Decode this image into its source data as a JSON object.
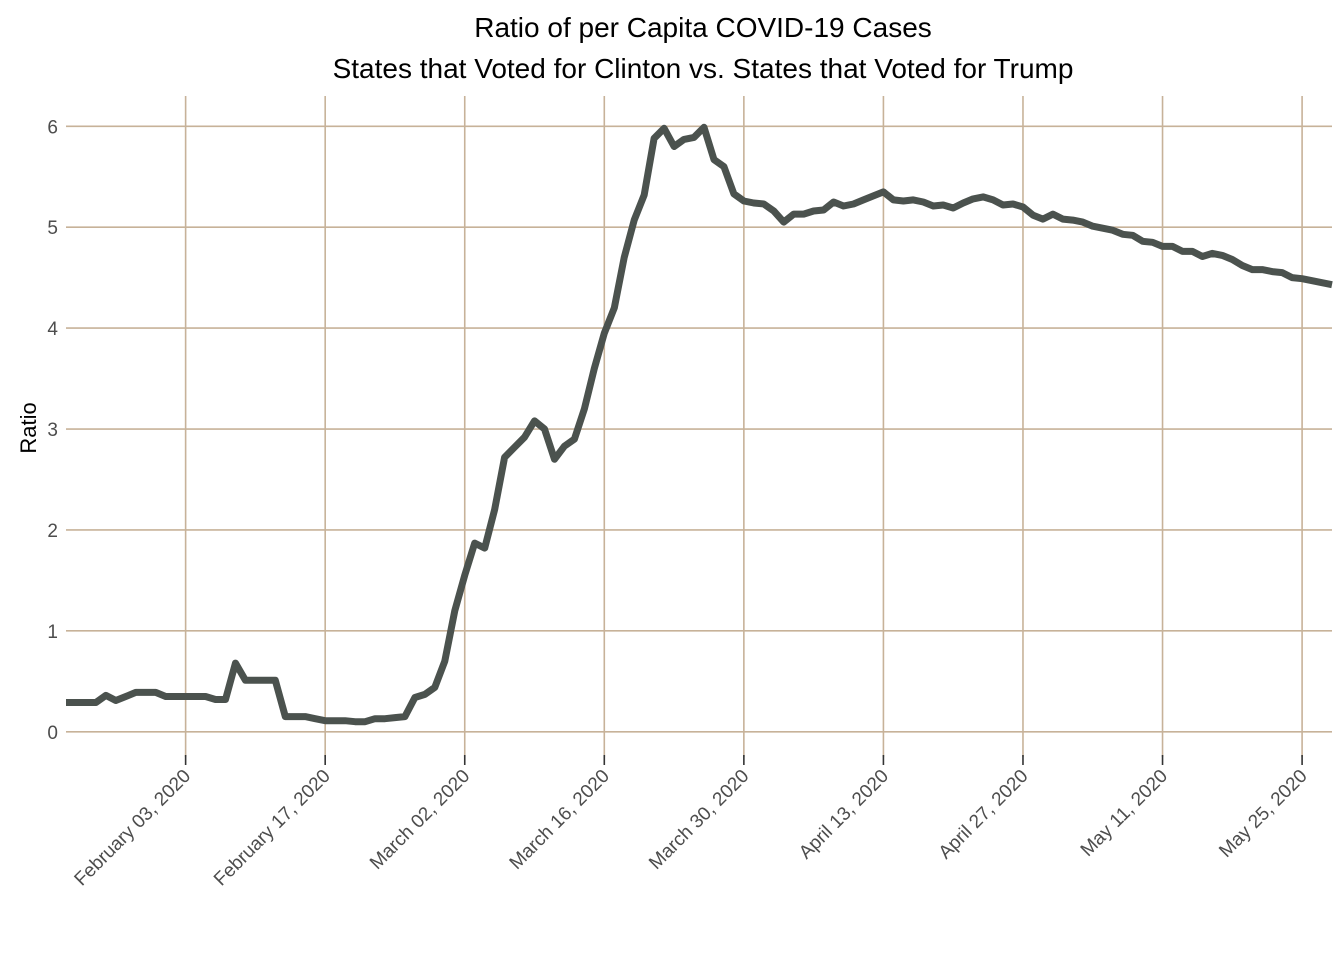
{
  "chart_data": {
    "type": "line",
    "title": [
      "Ratio of per Capita COVID-19 Cases",
      "States that Voted for Clinton vs. States that Voted for Trump"
    ],
    "xlabel": "",
    "ylabel": "Ratio",
    "xlim": [
      "2020-01-22",
      "2020-05-28"
    ],
    "ylim": [
      -0.25,
      6.3
    ],
    "y_ticks": [
      "0",
      "1",
      "2",
      "3",
      "4",
      "5",
      "6"
    ],
    "y_tick_values": [
      0,
      1,
      2,
      3,
      4,
      5,
      6
    ],
    "x_tick_dates": [
      "2020-02-03",
      "2020-02-17",
      "2020-03-02",
      "2020-03-16",
      "2020-03-30",
      "2020-04-13",
      "2020-04-27",
      "2020-05-11",
      "2020-05-25"
    ],
    "x_tick_labels": [
      "February 03, 2020",
      "February 17, 2020",
      "March 02, 2020",
      "March 16, 2020",
      "March 30, 2020",
      "April 13, 2020",
      "April 27, 2020",
      "May 11, 2020",
      "May 25, 2020"
    ],
    "grid": true,
    "line_color": "#4b524e",
    "grid_color": "#c7b299",
    "series": [
      {
        "x": [
          "2020-01-22",
          "2020-01-23",
          "2020-01-24",
          "2020-01-25",
          "2020-01-26",
          "2020-01-27",
          "2020-01-28",
          "2020-01-29",
          "2020-01-30",
          "2020-01-31",
          "2020-02-01",
          "2020-02-02",
          "2020-02-03",
          "2020-02-04",
          "2020-02-05",
          "2020-02-06",
          "2020-02-07",
          "2020-02-08",
          "2020-02-09",
          "2020-02-10",
          "2020-02-11",
          "2020-02-12",
          "2020-02-13",
          "2020-02-14",
          "2020-02-15",
          "2020-02-16",
          "2020-02-17",
          "2020-02-18",
          "2020-02-19",
          "2020-02-20",
          "2020-02-21",
          "2020-02-22",
          "2020-02-23",
          "2020-02-24",
          "2020-02-25",
          "2020-02-26",
          "2020-02-27",
          "2020-02-28",
          "2020-02-29",
          "2020-03-01",
          "2020-03-02",
          "2020-03-03",
          "2020-03-04",
          "2020-03-05",
          "2020-03-06",
          "2020-03-07",
          "2020-03-08",
          "2020-03-09",
          "2020-03-10",
          "2020-03-11",
          "2020-03-12",
          "2020-03-13",
          "2020-03-14",
          "2020-03-15",
          "2020-03-16",
          "2020-03-17",
          "2020-03-18",
          "2020-03-19",
          "2020-03-20",
          "2020-03-21",
          "2020-03-22",
          "2020-03-23",
          "2020-03-24",
          "2020-03-25",
          "2020-03-26",
          "2020-03-27",
          "2020-03-28",
          "2020-03-29",
          "2020-03-30",
          "2020-03-31",
          "2020-04-01",
          "2020-04-02",
          "2020-04-03",
          "2020-04-04",
          "2020-04-05",
          "2020-04-06",
          "2020-04-07",
          "2020-04-08",
          "2020-04-09",
          "2020-04-10",
          "2020-04-11",
          "2020-04-12",
          "2020-04-13",
          "2020-04-14",
          "2020-04-15",
          "2020-04-16",
          "2020-04-17",
          "2020-04-18",
          "2020-04-19",
          "2020-04-20",
          "2020-04-21",
          "2020-04-22",
          "2020-04-23",
          "2020-04-24",
          "2020-04-25",
          "2020-04-26",
          "2020-04-27",
          "2020-04-28",
          "2020-04-29",
          "2020-04-30",
          "2020-05-01",
          "2020-05-02",
          "2020-05-03",
          "2020-05-04",
          "2020-05-05",
          "2020-05-06",
          "2020-05-07",
          "2020-05-08",
          "2020-05-09",
          "2020-05-10",
          "2020-05-11",
          "2020-05-12",
          "2020-05-13",
          "2020-05-14",
          "2020-05-15",
          "2020-05-16",
          "2020-05-17",
          "2020-05-18",
          "2020-05-19",
          "2020-05-20",
          "2020-05-21",
          "2020-05-22",
          "2020-05-23",
          "2020-05-24",
          "2020-05-25",
          "2020-05-26",
          "2020-05-27",
          "2020-05-28"
        ],
        "values": [
          0.29,
          0.29,
          0.29,
          0.29,
          0.36,
          0.31,
          0.35,
          0.39,
          0.39,
          0.39,
          0.35,
          0.35,
          0.35,
          0.35,
          0.35,
          0.32,
          0.32,
          0.68,
          0.51,
          0.51,
          0.51,
          0.51,
          0.15,
          0.15,
          0.15,
          0.13,
          0.11,
          0.11,
          0.11,
          0.1,
          0.1,
          0.13,
          0.13,
          0.14,
          0.15,
          0.34,
          0.37,
          0.44,
          0.7,
          1.2,
          1.55,
          1.87,
          1.82,
          2.2,
          2.72,
          2.82,
          2.92,
          3.08,
          3.0,
          2.7,
          2.83,
          2.9,
          3.2,
          3.6,
          3.95,
          4.2,
          4.7,
          5.07,
          5.32,
          5.88,
          5.98,
          5.8,
          5.87,
          5.89,
          5.99,
          5.67,
          5.6,
          5.33,
          5.26,
          5.24,
          5.23,
          5.16,
          5.05,
          5.13,
          5.13,
          5.16,
          5.17,
          5.25,
          5.21,
          5.23,
          5.27,
          5.31,
          5.35,
          5.27,
          5.26,
          5.27,
          5.25,
          5.21,
          5.22,
          5.19,
          5.24,
          5.28,
          5.3,
          5.27,
          5.22,
          5.23,
          5.2,
          5.12,
          5.08,
          5.13,
          5.08,
          5.07,
          5.05,
          5.01,
          4.99,
          4.97,
          4.93,
          4.92,
          4.86,
          4.85,
          4.81,
          4.81,
          4.76,
          4.76,
          4.71,
          4.74,
          4.72,
          4.68,
          4.62,
          4.58,
          4.58,
          4.56,
          4.55,
          4.5,
          4.49,
          4.47,
          4.45,
          4.43
        ]
      }
    ]
  }
}
